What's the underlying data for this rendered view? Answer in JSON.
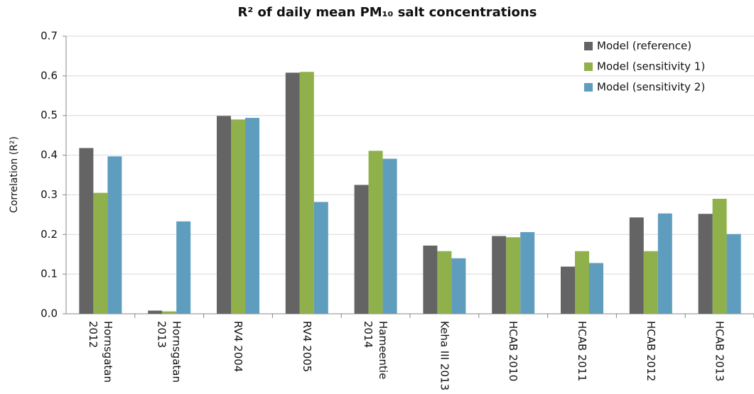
{
  "chart_data": {
    "type": "bar",
    "title": "R² of daily mean PM₁₀ salt concentrations",
    "y_label": "Correlation (R²)",
    "categories": [
      "Hornsgatan\n2012",
      "Hornsgatan\n2013",
      "RV4 2004",
      "RV4 2005",
      "Hameentie\n2014",
      "Keha III 2013",
      "HCAB 2010",
      "HCAB 2011",
      "HCAB 2012",
      "HCAB 2013"
    ],
    "series": [
      {
        "name": "Model (reference)",
        "color": "#646464",
        "values": [
          0.418,
          0.008,
          0.499,
          0.608,
          0.325,
          0.172,
          0.196,
          0.119,
          0.243,
          0.252
        ]
      },
      {
        "name": "Model (sensitivity 1)",
        "color": "#8fb04a",
        "values": [
          0.305,
          0.006,
          0.49,
          0.61,
          0.411,
          0.158,
          0.193,
          0.158,
          0.158,
          0.29
        ]
      },
      {
        "name": "Model (sensitivity 2)",
        "color": "#5f9dbf",
        "values": [
          0.397,
          0.233,
          0.494,
          0.282,
          0.391,
          0.14,
          0.206,
          0.128,
          0.253,
          0.201
        ]
      }
    ],
    "ylim": [
      0,
      0.7
    ],
    "yticks": [
      {
        "value": 0,
        "label": "0.0"
      },
      0.1,
      0.2,
      0.3,
      0.4,
      0.5,
      0.6,
      0.7
    ],
    "grid": true,
    "legend": "top-right"
  }
}
